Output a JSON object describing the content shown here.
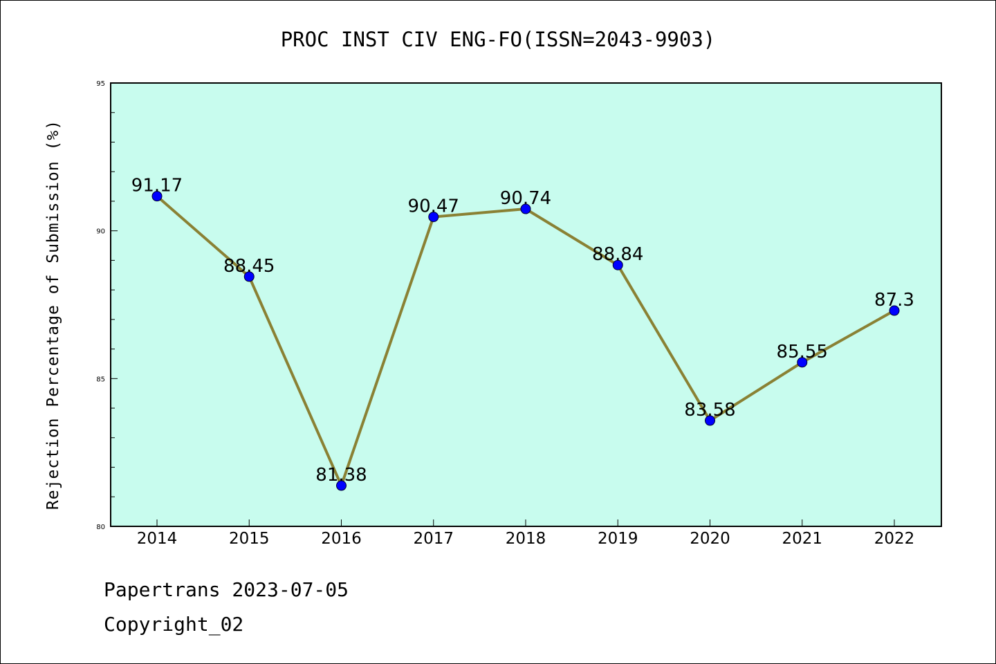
{
  "chart_data": {
    "type": "line",
    "title": "PROC INST CIV ENG-FO(ISSN=2043-9903)",
    "ylabel": "Rejection Percentage of Submission (%)",
    "xlabel": "",
    "categories": [
      "2014",
      "2015",
      "2016",
      "2017",
      "2018",
      "2019",
      "2020",
      "2021",
      "2022"
    ],
    "series": [
      {
        "values": [
          91.17,
          88.45,
          81.38,
          90.47,
          90.74,
          88.84,
          83.58,
          85.55,
          87.3
        ]
      }
    ],
    "data_labels": [
      "91.17",
      "88.45",
      "81.38",
      "90.47",
      "90.74",
      "88.84",
      "83.58",
      "85.55",
      "87.3"
    ],
    "ylim": [
      80,
      95
    ],
    "yticks": [
      "80",
      "85",
      "90",
      "95"
    ],
    "grid": false,
    "colors": {
      "plot_bg": "#c8fcee",
      "line": "#8a8134",
      "marker": "#0000ff"
    }
  },
  "footer": {
    "line1": "Papertrans 2023-07-05",
    "line2": "Copyright_02"
  }
}
